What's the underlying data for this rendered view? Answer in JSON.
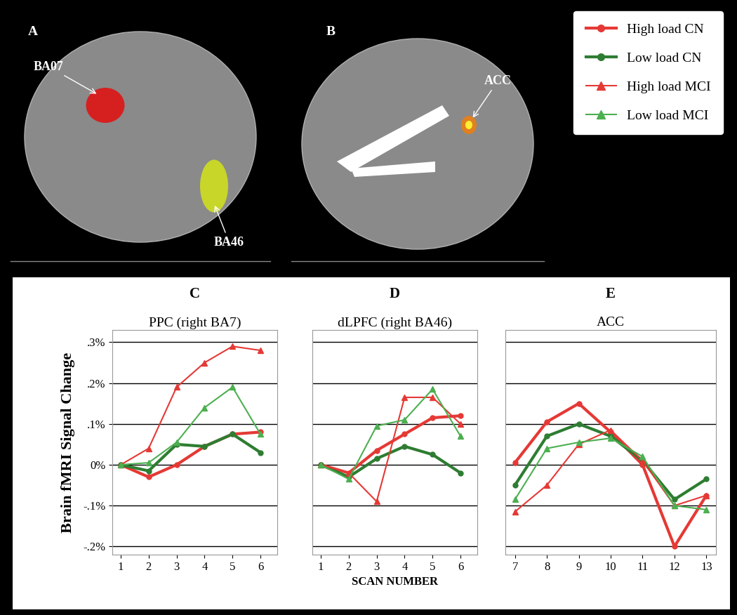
{
  "legend": "upper right",
  "images": [
    {
      "panel": "A",
      "labels": [
        "BA07",
        "BA46"
      ]
    },
    {
      "panel": "B",
      "labels": [
        "ACC"
      ]
    }
  ],
  "chart_data": [
    {
      "panel": "C",
      "type": "line",
      "title": "PPC (right BA7)",
      "y_label": "Brain fMRI Signal Change",
      "x": [
        1,
        2,
        3,
        4,
        5,
        6
      ],
      "xlim": [
        0.7,
        6.6
      ],
      "xticks": [
        1,
        2,
        3,
        4,
        5,
        6
      ],
      "ylim": [
        -0.22,
        0.33
      ],
      "yticks": [
        {
          "value": -0.2,
          "label": "-.2%"
        },
        {
          "value": -0.1,
          "label": "-.1%"
        },
        {
          "value": 0,
          "label": "0%"
        },
        {
          "value": 0.1,
          "label": ".1%"
        },
        {
          "value": 0.2,
          "label": ".2%"
        },
        {
          "value": 0.3,
          "label": ".3%"
        }
      ],
      "grid": true,
      "series": [
        {
          "name": "High load CN",
          "color": "#e53935",
          "marker": "o",
          "line_style": "solid",
          "values": [
            0,
            -0.03,
            0.0,
            0.045,
            0.075,
            0.08
          ]
        },
        {
          "name": "Low load CN",
          "color": "#2e7d32",
          "marker": "o",
          "line_style": "solid",
          "values": [
            0,
            -0.015,
            0.05,
            0.045,
            0.075,
            0.03
          ]
        },
        {
          "name": "High load MCI",
          "color": "#e53935",
          "marker": "^",
          "line_style": "solid",
          "values": [
            0,
            0.04,
            0.19,
            0.25,
            0.29,
            0.28
          ]
        },
        {
          "name": "Low load MCI",
          "color": "#4caf50",
          "marker": "^",
          "line_style": "solid",
          "values": [
            0,
            0.005,
            0.055,
            0.14,
            0.19,
            0.075
          ]
        }
      ]
    },
    {
      "panel": "D",
      "type": "line",
      "title": "dLPFC (right BA46)",
      "x_label": "SCAN NUMBER",
      "x": [
        1,
        2,
        3,
        4,
        5,
        6
      ],
      "xlim": [
        0.7,
        6.6
      ],
      "xticks": [
        1,
        2,
        3,
        4,
        5,
        6
      ],
      "ylim": [
        -0.22,
        0.33
      ],
      "yticks": [
        -0.2,
        -0.1,
        0,
        0.1,
        0.2,
        0.3
      ],
      "grid": true,
      "tick_labels": "x",
      "series": [
        {
          "name": "High load CN",
          "color": "#e53935",
          "marker": "o",
          "line_style": "solid",
          "values": [
            0,
            -0.02,
            0.035,
            0.075,
            0.115,
            0.12
          ]
        },
        {
          "name": "Low load CN",
          "color": "#2e7d32",
          "marker": "o",
          "line_style": "solid",
          "values": [
            0,
            -0.03,
            0.015,
            0.045,
            0.025,
            -0.02
          ]
        },
        {
          "name": "High load MCI",
          "color": "#e53935",
          "marker": "^",
          "line_style": "solid",
          "values": [
            0,
            -0.02,
            -0.09,
            0.165,
            0.165,
            0.1
          ]
        },
        {
          "name": "Low load MCI",
          "color": "#4caf50",
          "marker": "^",
          "line_style": "solid",
          "values": [
            0,
            -0.035,
            0.095,
            0.11,
            0.185,
            0.07
          ]
        }
      ]
    },
    {
      "panel": "E",
      "type": "line",
      "title": "ACC",
      "x": [
        7,
        8,
        9,
        10,
        11,
        12,
        13
      ],
      "xlim": [
        6.7,
        13.3
      ],
      "xticks": [
        7,
        8,
        9,
        10,
        11,
        12,
        13
      ],
      "ylim": [
        -0.22,
        0.33
      ],
      "yticks": [
        -0.2,
        -0.1,
        0,
        0.1,
        0.2,
        0.3
      ],
      "grid": true,
      "tick_labels": "x",
      "series": [
        {
          "name": "High load CN",
          "color": "#e53935",
          "marker": "o",
          "line_style": "solid",
          "values": [
            0.005,
            0.105,
            0.15,
            0.08,
            0.0,
            -0.2,
            -0.075
          ]
        },
        {
          "name": "Low load CN",
          "color": "#2e7d32",
          "marker": "o",
          "line_style": "solid",
          "values": [
            -0.05,
            0.07,
            0.1,
            0.07,
            0.01,
            -0.085,
            -0.035
          ]
        },
        {
          "name": "High load MCI",
          "color": "#e53935",
          "marker": "^",
          "line_style": "solid",
          "values": [
            -0.115,
            -0.05,
            0.05,
            0.085,
            0.01,
            -0.1,
            -0.075
          ]
        },
        {
          "name": "Low load MCI",
          "color": "#4caf50",
          "marker": "^",
          "line_style": "solid",
          "values": [
            -0.085,
            0.04,
            0.055,
            0.065,
            0.02,
            -0.1,
            -0.11
          ]
        }
      ]
    }
  ]
}
